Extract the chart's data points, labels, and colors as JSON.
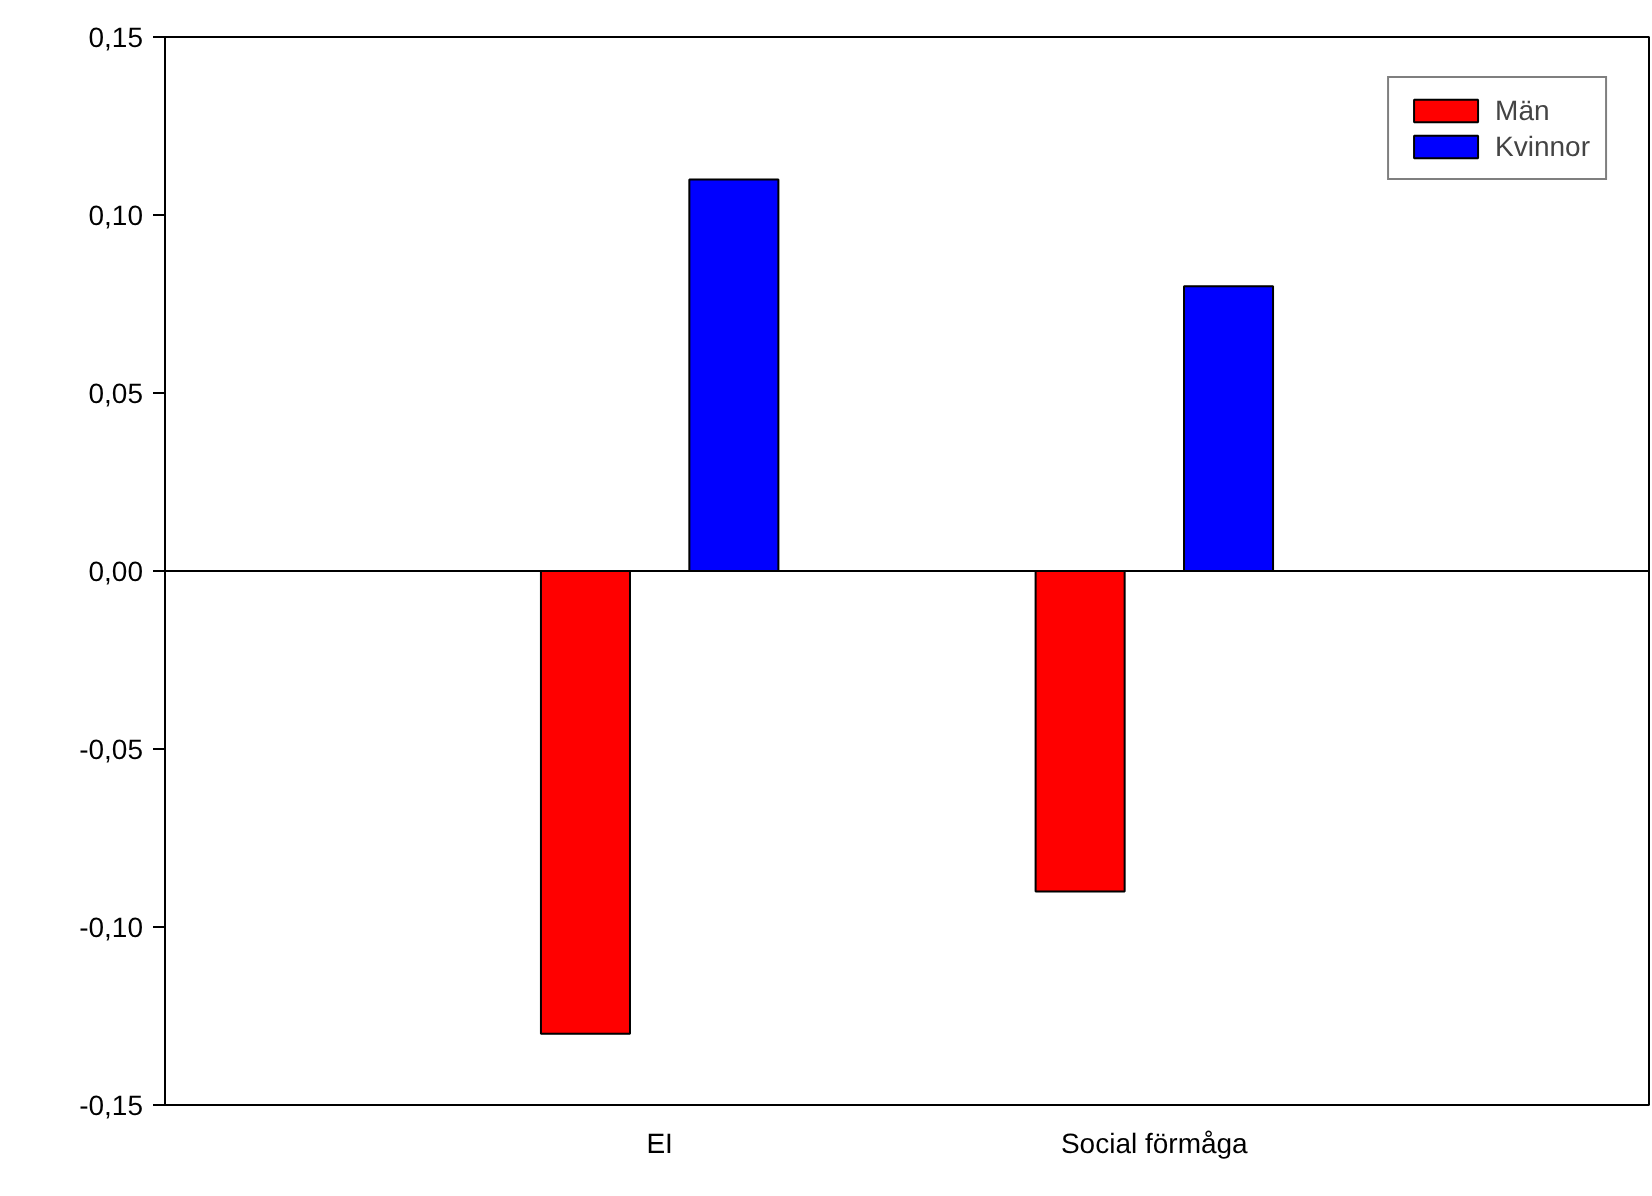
{
  "chart_data": {
    "type": "bar",
    "categories": [
      "EI",
      "Social förmåga"
    ],
    "series": [
      {
        "name": "Män",
        "color": "#ff0000",
        "values": [
          -0.13,
          -0.09
        ]
      },
      {
        "name": "Kvinnor",
        "color": "#0000ff",
        "values": [
          0.11,
          0.08
        ]
      }
    ],
    "ylim": [
      -0.15,
      0.15
    ],
    "yticks": [
      {
        "value": -0.15,
        "label": "-0,15"
      },
      {
        "value": -0.1,
        "label": "-0,10"
      },
      {
        "value": -0.05,
        "label": "-0,05"
      },
      {
        "value": 0,
        "label": "0,00"
      },
      {
        "value": 0.05,
        "label": "0,05"
      },
      {
        "value": 0.1,
        "label": "0,10"
      },
      {
        "value": 0.15,
        "label": "0,15"
      }
    ],
    "ref_lines": [
      {
        "axis": "y",
        "value": 0,
        "label": null,
        "color": "#000000"
      }
    ],
    "grid": false,
    "legend": "top right"
  }
}
